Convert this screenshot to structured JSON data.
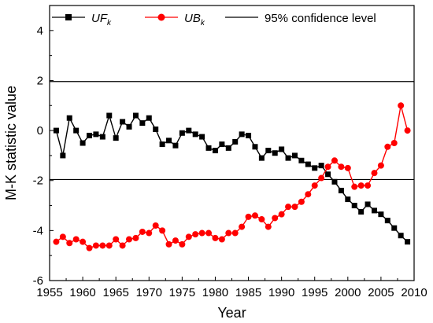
{
  "chart_data": {
    "type": "line",
    "xlabel": "Year",
    "ylabel": "M-K statistic value",
    "xlim": [
      1955,
      2010
    ],
    "ylim": [
      -6,
      5
    ],
    "xticks": [
      1955,
      1960,
      1965,
      1970,
      1975,
      1980,
      1985,
      1990,
      1995,
      2000,
      2005,
      2010
    ],
    "yticks": [
      -6,
      -4,
      -2,
      0,
      2,
      4
    ],
    "grid": false,
    "legend_position": "top",
    "x": [
      1956,
      1957,
      1958,
      1959,
      1960,
      1961,
      1962,
      1963,
      1964,
      1965,
      1966,
      1967,
      1968,
      1969,
      1970,
      1971,
      1972,
      1973,
      1974,
      1975,
      1976,
      1977,
      1978,
      1979,
      1980,
      1981,
      1982,
      1983,
      1984,
      1985,
      1986,
      1987,
      1988,
      1989,
      1990,
      1991,
      1992,
      1993,
      1994,
      1995,
      1996,
      1997,
      1998,
      1999,
      2000,
      2001,
      2002,
      2003,
      2004,
      2005,
      2006,
      2007,
      2008,
      2009
    ],
    "series": [
      {
        "name": "UF",
        "name_subscript": "k",
        "color": "#000000",
        "marker": "square",
        "values": [
          0.0,
          -1.0,
          0.5,
          0.0,
          -0.5,
          -0.2,
          -0.15,
          -0.25,
          0.6,
          -0.3,
          0.35,
          0.15,
          0.6,
          0.3,
          0.5,
          0.05,
          -0.55,
          -0.4,
          -0.6,
          -0.1,
          0.0,
          -0.15,
          -0.25,
          -0.7,
          -0.8,
          -0.55,
          -0.7,
          -0.45,
          -0.15,
          -0.2,
          -0.65,
          -1.1,
          -0.8,
          -0.9,
          -0.75,
          -1.1,
          -1.0,
          -1.2,
          -1.35,
          -1.5,
          -1.4,
          -1.75,
          -2.05,
          -2.4,
          -2.75,
          -3.0,
          -3.25,
          -2.95,
          -3.2,
          -3.35,
          -3.6,
          -3.9,
          -4.2,
          -4.45
        ]
      },
      {
        "name": "UB",
        "name_subscript": "k",
        "color": "#ff0000",
        "marker": "circle",
        "values": [
          -4.45,
          -4.25,
          -4.5,
          -4.35,
          -4.45,
          -4.7,
          -4.6,
          -4.6,
          -4.6,
          -4.35,
          -4.6,
          -4.35,
          -4.3,
          -4.05,
          -4.1,
          -3.8,
          -4.0,
          -4.55,
          -4.4,
          -4.55,
          -4.25,
          -4.15,
          -4.1,
          -4.1,
          -4.3,
          -4.35,
          -4.1,
          -4.1,
          -3.85,
          -3.45,
          -3.4,
          -3.55,
          -3.85,
          -3.5,
          -3.35,
          -3.05,
          -3.05,
          -2.85,
          -2.55,
          -2.2,
          -1.9,
          -1.45,
          -1.2,
          -1.45,
          -1.5,
          -2.25,
          -2.2,
          -2.2,
          -1.7,
          -1.4,
          -0.65,
          -0.5,
          1.0,
          0.0
        ]
      },
      {
        "name": "95% confidence level",
        "color": "#000000",
        "marker": "none",
        "hlines": [
          1.96,
          -1.96
        ]
      }
    ]
  }
}
